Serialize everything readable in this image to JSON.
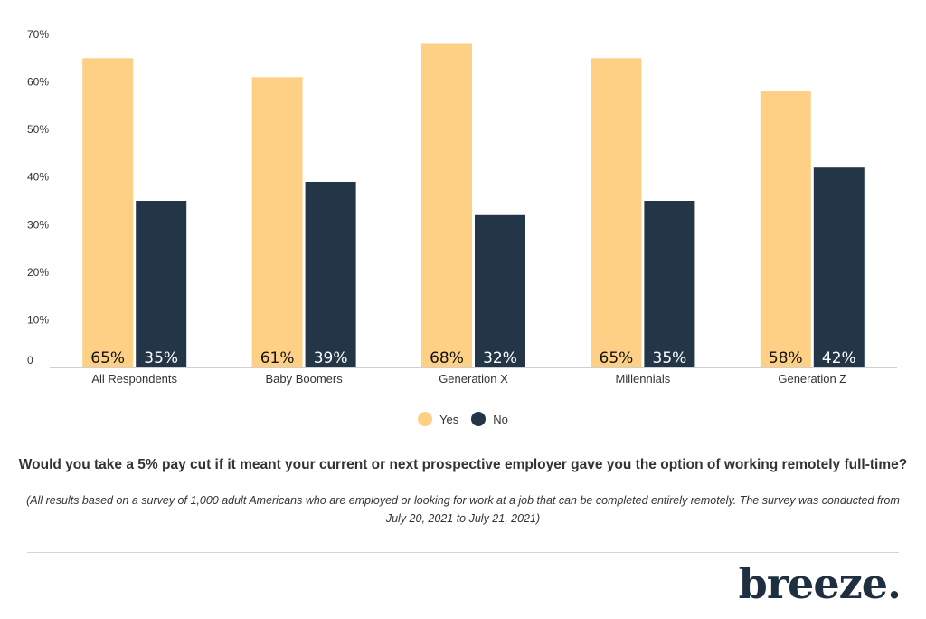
{
  "chart_data": {
    "type": "bar",
    "categories": [
      "All Respondents",
      "Baby Boomers",
      "Generation X",
      "Millennials",
      "Generation Z"
    ],
    "series": [
      {
        "name": "Yes",
        "values": [
          65,
          61,
          68,
          65,
          58
        ],
        "labels": [
          "65%",
          "61%",
          "68%",
          "65%",
          "58%"
        ],
        "color": "#fdd085"
      },
      {
        "name": "No",
        "values": [
          35,
          39,
          32,
          35,
          42
        ],
        "labels": [
          "35%",
          "39%",
          "32%",
          "35%",
          "42%"
        ],
        "color": "#233648"
      }
    ],
    "ylim": [
      0,
      70
    ],
    "yticks": [
      "0",
      "10%",
      "20%",
      "30%",
      "40%",
      "50%",
      "60%",
      "70%"
    ],
    "grid": false,
    "legend_position": "bottom-center",
    "title": "Would you take a 5% pay cut if it meant your current or next prospective employer gave you the option of working remotely full-time?",
    "note": "(All results based on a survey of 1,000 adult Americans who are employed or looking for work at a job that can be completed entirely remotely. The survey was conducted from July 20, 2021 to July 21, 2021)"
  },
  "brand": {
    "logo_text": "breeze.",
    "color": "#1e2f40"
  }
}
